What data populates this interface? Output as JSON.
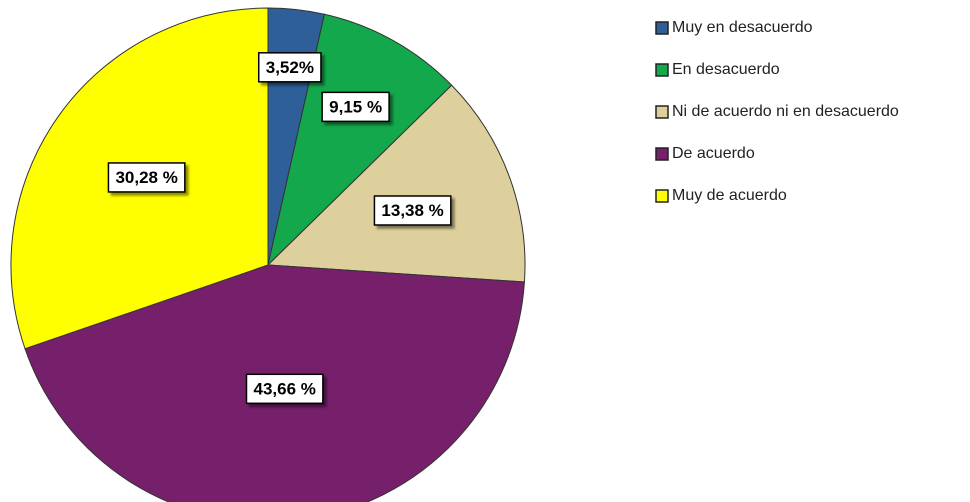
{
  "chart_data": {
    "type": "pie",
    "categories": [
      "Muy en desacuerdo",
      "En desacuerdo",
      "Ni de acuerdo ni en desacuerdo",
      "De acuerdo",
      "Muy de acuerdo"
    ],
    "values": [
      3.52,
      9.15,
      13.38,
      43.66,
      30.28
    ],
    "value_labels": [
      "3,52%",
      "9,15 %",
      "13,38 %",
      "43,66 %",
      "30,28 %"
    ],
    "colors": [
      "#2f5f98",
      "#13a84b",
      "#ddd09c",
      "#76206b",
      "#ffff00"
    ],
    "legend": "right"
  }
}
